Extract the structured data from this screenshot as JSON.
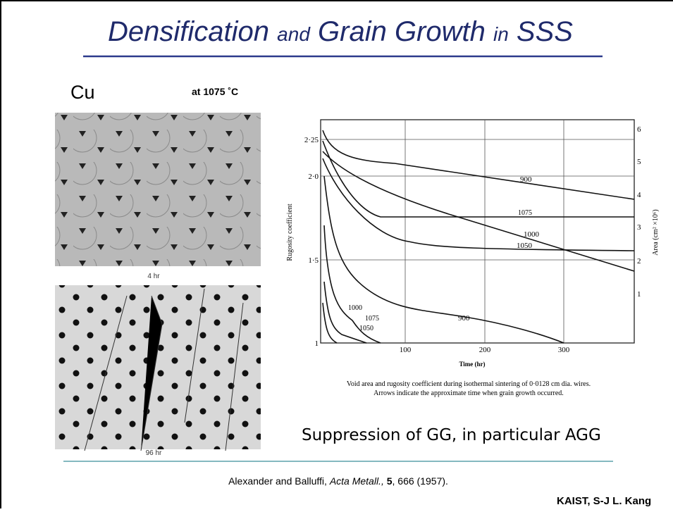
{
  "title": {
    "parts": [
      "Densification",
      "and",
      "Grain Growth",
      "in",
      "SSS"
    ]
  },
  "material": "Cu",
  "condition": "at 1075 ˚C",
  "micrographs": [
    {
      "label": "4 hr"
    },
    {
      "label": "96 hr"
    }
  ],
  "figure": {
    "y_label": "Rugosity coefficient",
    "y2_label": "Area (cm² ×10⁶)",
    "x_label": "Time (hr)",
    "y_ticks": [
      "2·25",
      "2·0",
      "1·5",
      "1"
    ],
    "y2_ticks": [
      "6",
      "5",
      "4",
      "3",
      "2",
      "1"
    ],
    "x_ticks": [
      "100",
      "200",
      "300"
    ],
    "curve_labels": [
      "900",
      "1075",
      "1000",
      "1050",
      "1000",
      "1075",
      "1050",
      "900"
    ],
    "caption": [
      "Void area and rugosity coefficient during isothermal sintering of 0·0128 cm dia. wires.",
      "Arrows indicate the approximate time when grain growth occurred."
    ]
  },
  "remark": "Suppression of GG, in particular AGG",
  "citation": {
    "authors": "Alexander and Balluffi, ",
    "journal": "Acta Metall.,",
    "volume": "5",
    "rest": ", 666 (1957)."
  },
  "footer": "KAIST, S-J L. Kang"
}
